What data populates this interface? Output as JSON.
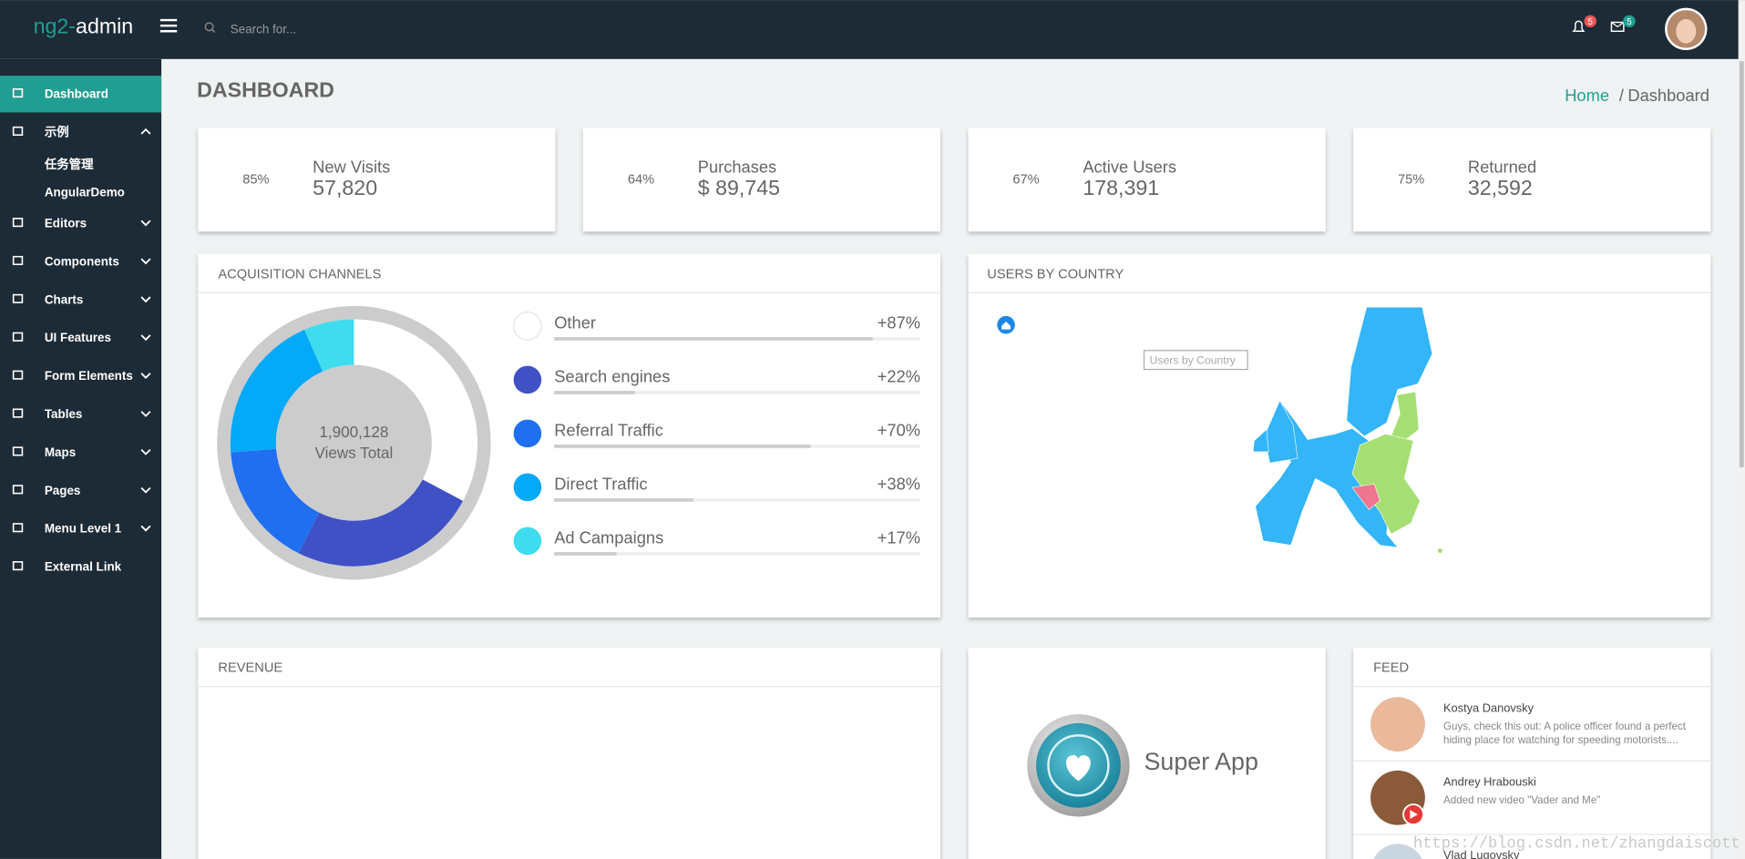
{
  "header": {
    "brand_prefix": "ng2-",
    "brand_name": "admin",
    "search_placeholder": "Search for...",
    "notifications_count": "5",
    "messages_count": "5"
  },
  "sidebar": {
    "items": [
      {
        "label": "Dashboard"
      },
      {
        "label": "示例",
        "children": [
          "任务管理",
          "AngularDemo"
        ]
      },
      {
        "label": "Editors"
      },
      {
        "label": "Components"
      },
      {
        "label": "Charts"
      },
      {
        "label": "UI Features"
      },
      {
        "label": "Form Elements"
      },
      {
        "label": "Tables"
      },
      {
        "label": "Maps"
      },
      {
        "label": "Pages"
      },
      {
        "label": "Menu Level 1"
      },
      {
        "label": "External Link"
      }
    ]
  },
  "page": {
    "title": "DASHBOARD",
    "breadcrumb": [
      "Home",
      "/",
      "Dashboard"
    ]
  },
  "stats": [
    {
      "percent": "85%",
      "label": "New Visits",
      "value": "57,820"
    },
    {
      "percent": "64%",
      "label": "Purchases",
      "value": "$ 89,745"
    },
    {
      "percent": "67%",
      "label": "Active Users",
      "value": "178,391"
    },
    {
      "percent": "75%",
      "label": "Returned",
      "value": "32,592"
    }
  ],
  "acquisition": {
    "title": "ACQUISITION CHANNELS",
    "total": "1,900,128",
    "total_label": "Views Total",
    "channels": [
      {
        "name": "Other",
        "color": "#ffffff",
        "share": 2000,
        "change": {
          "value": 87,
          "label": "+87%"
        }
      },
      {
        "name": "Search engines",
        "color": "#3f51c5",
        "share": 1500,
        "change": {
          "value": 22,
          "label": "+22%"
        }
      },
      {
        "name": "Referral Traffic",
        "color": "#1f6ff0",
        "share": 1000,
        "change": {
          "value": 70,
          "label": "+70%"
        }
      },
      {
        "name": "Direct Traffic",
        "color": "#04a9f7",
        "share": 1200,
        "change": {
          "value": 38,
          "label": "+38%"
        }
      },
      {
        "name": "Ad Campaigns",
        "color": "#3fdcef",
        "share": 400,
        "change": {
          "value": 17,
          "label": "+17%"
        }
      }
    ]
  },
  "users_by_country": {
    "title": "USERS BY COUNTRY",
    "tooltip": "Users by Country"
  },
  "revenue": {
    "title": "REVENUE"
  },
  "super_app": {
    "label": "Super App"
  },
  "feed": {
    "title": "FEED",
    "items": [
      {
        "author": "Kostya Danovsky",
        "text": [
          "Guys, check this out: A police officer found a perfect",
          "hiding place for watching for speeding motorists...."
        ]
      },
      {
        "author": "Andrey Hrabouski",
        "text": [
          "Added new video \"Vader and Me\""
        ]
      },
      {
        "author": "Vlad Lugovsky",
        "text": []
      }
    ]
  },
  "watermark": "https://blog.csdn.net/zhangdaiscott"
}
